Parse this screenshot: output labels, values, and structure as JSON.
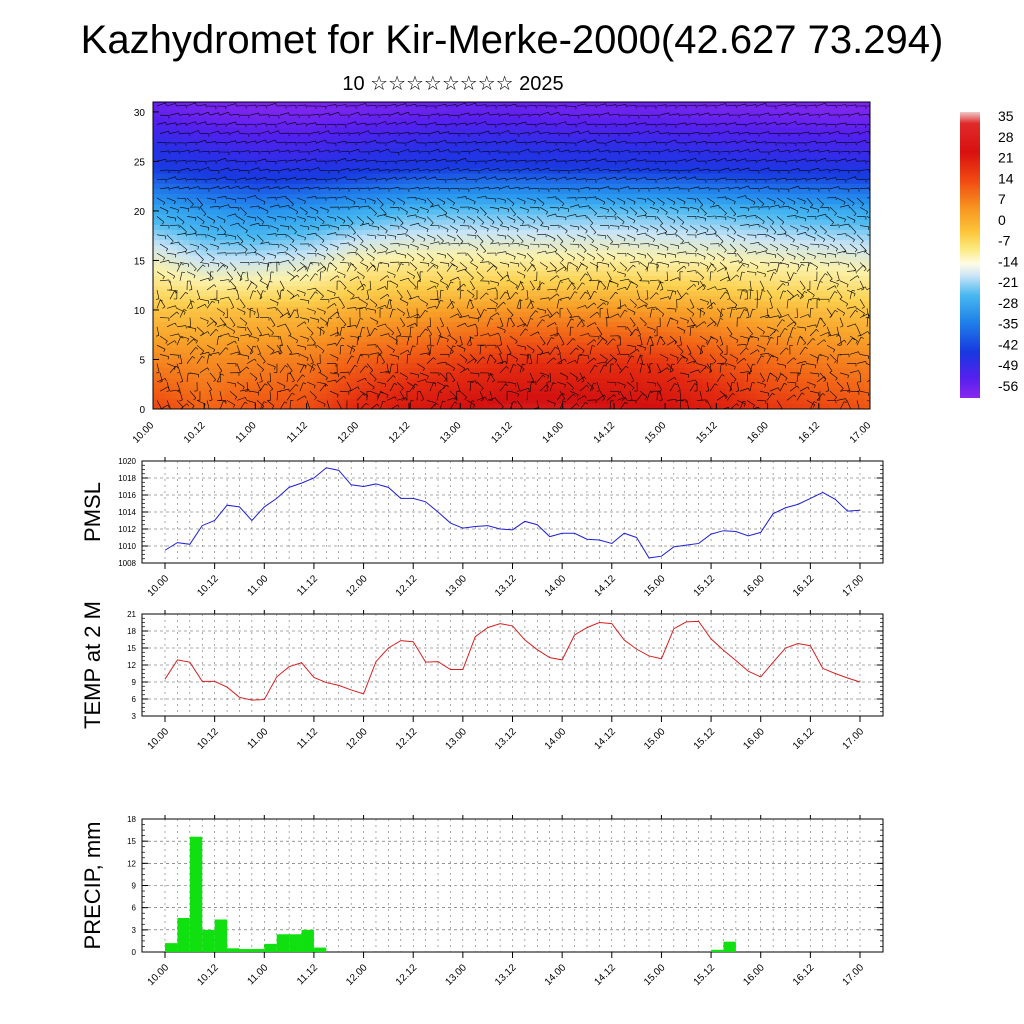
{
  "page": {
    "title": "Kazhydromet for Kir-Merke-2000(42.627 73.294)",
    "subtitle": "10 ☆☆☆☆☆☆☆☆ 2025"
  },
  "colors": {
    "pmsl_line": "#1f1fd6",
    "temp_line": "#d61f1f",
    "precip_bar": "#10e010",
    "grid_dash": "#555555",
    "wind_barb": "#000000"
  },
  "time_ticks": [
    "10.00",
    "10.12",
    "11.00",
    "11.12",
    "12.00",
    "12.12",
    "13.00",
    "13.12",
    "14.00",
    "14.12",
    "15.00",
    "15.12",
    "16.00",
    "16.12",
    "17.00"
  ],
  "chart_data": [
    {
      "id": "cross-section",
      "type": "heatmap",
      "title": "",
      "ylabel": "",
      "ylim": [
        0,
        31
      ],
      "yticks": [
        "0",
        "5",
        "10",
        "15",
        "20",
        "25",
        "30"
      ],
      "x": [
        "10.00",
        "10.12",
        "11.00",
        "11.12",
        "12.00",
        "12.12",
        "13.00",
        "13.12",
        "14.00",
        "14.12",
        "15.00",
        "15.12",
        "16.00",
        "16.12",
        "17.00"
      ],
      "colorbar": {
        "labels": [
          "35",
          "28",
          "21",
          "14",
          "7",
          "0",
          "-7",
          "-14",
          "-21",
          "-28",
          "-35",
          "-42",
          "-49",
          "-56"
        ],
        "range": [
          -63,
          42
        ]
      },
      "temperature_by_level": [
        {
          "level": 0,
          "values": [
            18,
            14,
            16,
            17,
            22,
            26,
            28,
            30,
            30,
            29,
            28,
            24,
            20,
            18,
            16
          ]
        },
        {
          "level": 5,
          "values": [
            10,
            9,
            10,
            11,
            14,
            16,
            18,
            20,
            20,
            20,
            19,
            16,
            13,
            11,
            10
          ]
        },
        {
          "level": 10,
          "values": [
            2,
            2,
            3,
            3,
            5,
            6,
            7,
            8,
            8,
            8,
            7,
            6,
            4,
            3,
            2
          ]
        },
        {
          "level": 15,
          "values": [
            -9,
            -14,
            -14,
            -12,
            -7,
            -6,
            -6,
            -6,
            -6,
            -6,
            -7,
            -7,
            -8,
            -9,
            -10
          ]
        },
        {
          "level": 20,
          "values": [
            -24,
            -27,
            -29,
            -27,
            -24,
            -21,
            -20,
            -20,
            -20,
            -20,
            -20,
            -21,
            -22,
            -23,
            -24
          ]
        },
        {
          "level": 25,
          "values": [
            -45,
            -48,
            -50,
            -50,
            -48,
            -46,
            -45,
            -45,
            -46,
            -46,
            -47,
            -48,
            -49,
            -49,
            -50
          ]
        },
        {
          "level": 30,
          "values": [
            -58,
            -60,
            -61,
            -61,
            -60,
            -59,
            -58,
            -58,
            -59,
            -59,
            -59,
            -60,
            -60,
            -61,
            -61
          ]
        }
      ]
    },
    {
      "id": "pmsl",
      "type": "line",
      "ylabel": "PMSL",
      "ylim": [
        1008,
        1020
      ],
      "yticks": [
        "1008",
        "1010",
        "1012",
        "1014",
        "1016",
        "1018",
        "1020"
      ],
      "x_start_hours": 0,
      "x_step_hours": 3,
      "series": [
        {
          "values": [
            1009.5,
            1010.4,
            1010.2,
            1012.4,
            1013.0,
            1014.8,
            1014.6,
            1013.0,
            1014.6,
            1015.6,
            1016.9,
            1017.4,
            1018.0,
            1019.2,
            1018.9,
            1017.2,
            1017.0,
            1017.3,
            1016.9,
            1015.6,
            1015.6,
            1015.2,
            1014.0,
            1012.7,
            1012.1,
            1012.3,
            1012.4,
            1012.0,
            1011.9,
            1012.9,
            1012.5,
            1011.1,
            1011.5,
            1011.5,
            1010.8,
            1010.7,
            1010.3,
            1011.5,
            1011.0,
            1008.6,
            1008.8,
            1009.9,
            1010.1,
            1010.3,
            1011.4,
            1011.8,
            1011.7,
            1011.2,
            1011.6,
            1013.8,
            1014.5,
            1014.9,
            1015.6,
            1016.3,
            1015.5,
            1014.1,
            1014.2
          ]
        }
      ]
    },
    {
      "id": "temp2m",
      "type": "line",
      "ylabel": "TEMP at 2 M",
      "ylim": [
        3,
        21
      ],
      "yticks": [
        "3",
        "6",
        "9",
        "12",
        "15",
        "18",
        "21"
      ],
      "x_start_hours": 0,
      "x_step_hours": 3,
      "series": [
        {
          "values": [
            9.5,
            12.9,
            12.5,
            9.1,
            9.1,
            8.1,
            6.3,
            5.8,
            5.9,
            9.9,
            11.7,
            12.4,
            9.8,
            8.9,
            8.4,
            7.6,
            6.9,
            12.6,
            15.0,
            16.3,
            16.1,
            12.5,
            12.6,
            11.2,
            11.2,
            17.0,
            18.6,
            19.3,
            18.9,
            16.4,
            14.7,
            13.3,
            12.9,
            17.3,
            18.6,
            19.5,
            19.3,
            16.4,
            14.8,
            13.6,
            13.1,
            18.4,
            19.6,
            19.7,
            16.6,
            14.6,
            12.8,
            10.9,
            9.9,
            12.5,
            15.0,
            15.8,
            15.4,
            11.4,
            10.5,
            9.7,
            9.0
          ]
        }
      ]
    },
    {
      "id": "precip",
      "type": "bar",
      "ylabel": "PRECIP, mm",
      "ylim": [
        0,
        18
      ],
      "yticks": [
        "0",
        "3",
        "6",
        "9",
        "12",
        "15",
        "18"
      ],
      "x_start_hours": 0,
      "x_step_hours": 3,
      "series": [
        {
          "values": [
            1.2,
            4.6,
            15.6,
            3.0,
            4.4,
            0.5,
            0.4,
            0.4,
            1.1,
            2.4,
            2.4,
            3.0,
            0.6,
            0,
            0,
            0,
            0,
            0,
            0,
            0,
            0,
            0,
            0,
            0,
            0,
            0,
            0,
            0,
            0,
            0,
            0,
            0,
            0,
            0,
            0,
            0,
            0,
            0,
            0,
            0,
            0,
            0,
            0,
            0,
            0.3,
            1.4,
            0,
            0,
            0,
            0,
            0,
            0,
            0,
            0,
            0,
            0
          ]
        }
      ]
    }
  ]
}
